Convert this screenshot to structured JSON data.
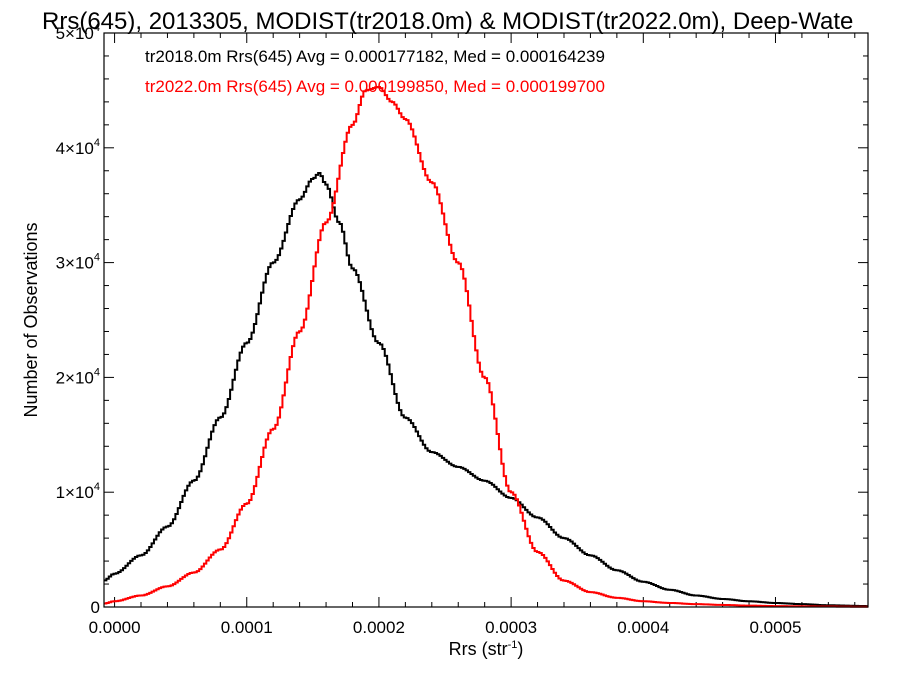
{
  "chart_data": {
    "type": "line",
    "title": "Rrs(645), 2013305, MODIST(tr2018.0m) & MODIST(tr2022.0m), Deep-Wate",
    "xlabel": "Rrs (str",
    "xlabel_sup": "-1",
    "xlabel_end": ")",
    "ylabel": "Number of Observations",
    "xlim": [
      -8e-06,
      0.00057
    ],
    "ylim": [
      0,
      50000
    ],
    "x_ticks": [
      {
        "value": 0.0,
        "label": "0.0000"
      },
      {
        "value": 0.0001,
        "label": "0.0001"
      },
      {
        "value": 0.0002,
        "label": "0.0002"
      },
      {
        "value": 0.0003,
        "label": "0.0003"
      },
      {
        "value": 0.0004,
        "label": "0.0004"
      },
      {
        "value": 0.0005,
        "label": "0.0005"
      }
    ],
    "y_ticks": [
      {
        "value": 0,
        "label": "0",
        "sup": ""
      },
      {
        "value": 10000,
        "label": "1×10",
        "sup": "4"
      },
      {
        "value": 20000,
        "label": "2×10",
        "sup": "4"
      },
      {
        "value": 30000,
        "label": "3×10",
        "sup": "4"
      },
      {
        "value": 40000,
        "label": "4×10",
        "sup": "4"
      },
      {
        "value": 50000,
        "label": "5×10",
        "sup": "4"
      }
    ],
    "legend": [
      {
        "text": "tr2018.0m Rrs(645) Avg = 0.000177182, Med = 0.000164239",
        "color": "#000000"
      },
      {
        "text": "tr2022.0m Rrs(645) Avg = 0.000199850, Med = 0.000199700",
        "color": "#ff0000"
      }
    ],
    "series": [
      {
        "label": "tr2018.0m",
        "color": "#000000",
        "points": [
          [
            -8e-06,
            2300
          ],
          [
            0.0,
            2900
          ],
          [
            2e-05,
            4500
          ],
          [
            4e-05,
            7000
          ],
          [
            6e-05,
            11000
          ],
          [
            8e-05,
            16500
          ],
          [
            0.0001,
            23000
          ],
          [
            0.00012,
            30000
          ],
          [
            0.00014,
            35500
          ],
          [
            0.00015,
            37300
          ],
          [
            0.000155,
            37800
          ],
          [
            0.00016,
            36800
          ],
          [
            0.00017,
            33500
          ],
          [
            0.00018,
            29500
          ],
          [
            0.0002,
            23000
          ],
          [
            0.00022,
            16500
          ],
          [
            0.00024,
            13500
          ],
          [
            0.00026,
            12200
          ],
          [
            0.00028,
            11000
          ],
          [
            0.0003,
            9500
          ],
          [
            0.00032,
            7800
          ],
          [
            0.00034,
            6000
          ],
          [
            0.00036,
            4500
          ],
          [
            0.00038,
            3200
          ],
          [
            0.0004,
            2200
          ],
          [
            0.00042,
            1500
          ],
          [
            0.00044,
            1000
          ],
          [
            0.00046,
            700
          ],
          [
            0.00048,
            500
          ],
          [
            0.0005,
            350
          ],
          [
            0.00052,
            250
          ],
          [
            0.00054,
            150
          ],
          [
            0.00057,
            80
          ]
        ]
      },
      {
        "label": "tr2022.0m",
        "color": "#ff0000",
        "points": [
          [
            -8e-06,
            300
          ],
          [
            0.0,
            500
          ],
          [
            2e-05,
            1000
          ],
          [
            4e-05,
            1800
          ],
          [
            6e-05,
            3000
          ],
          [
            8e-05,
            5000
          ],
          [
            0.0001,
            9000
          ],
          [
            0.00012,
            15500
          ],
          [
            0.00014,
            24000
          ],
          [
            0.00016,
            33500
          ],
          [
            0.00018,
            42000
          ],
          [
            0.00019,
            45000
          ],
          [
            0.0002,
            45300
          ],
          [
            0.00021,
            44000
          ],
          [
            0.00022,
            42500
          ],
          [
            0.00024,
            37000
          ],
          [
            0.00026,
            30000
          ],
          [
            0.00028,
            20000
          ],
          [
            0.0003,
            10000
          ],
          [
            0.00032,
            4800
          ],
          [
            0.00034,
            2300
          ],
          [
            0.00036,
            1300
          ],
          [
            0.00038,
            800
          ],
          [
            0.0004,
            500
          ],
          [
            0.00042,
            350
          ],
          [
            0.00044,
            250
          ],
          [
            0.00046,
            180
          ],
          [
            0.00048,
            120
          ],
          [
            0.0005,
            80
          ],
          [
            0.00052,
            60
          ],
          [
            0.00054,
            40
          ],
          [
            0.00057,
            20
          ]
        ]
      }
    ]
  }
}
